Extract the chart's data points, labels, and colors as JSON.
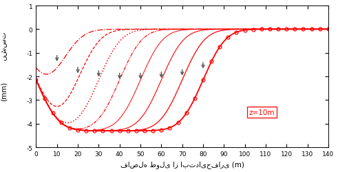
{
  "title": "",
  "xlabel": "فاصله طولی از ابتدایحفاری (m)",
  "ylabel_line1": "نشست",
  "ylabel_line2": "(mm)",
  "xlim": [
    0,
    140
  ],
  "ylim": [
    -5,
    1
  ],
  "xticks": [
    0,
    10,
    20,
    30,
    40,
    50,
    60,
    70,
    80,
    90,
    100,
    110,
    120,
    130,
    140
  ],
  "yticks": [
    -5,
    -4,
    -3,
    -2,
    -1,
    0,
    1
  ],
  "legend_text": "z=10m",
  "line_color": "#FF0000",
  "arrow_color": "#555555",
  "face_positions": [
    10,
    20,
    30,
    40,
    50,
    60,
    70,
    80
  ],
  "s_max": -4.3,
  "background_color": "#ffffff"
}
